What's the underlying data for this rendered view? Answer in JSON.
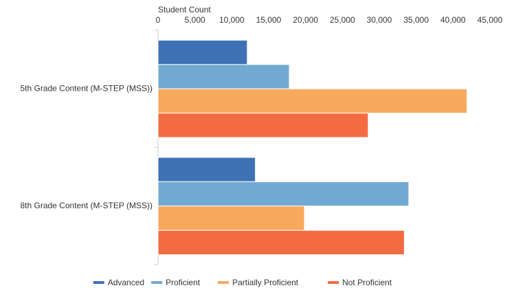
{
  "chart_data": {
    "type": "bar",
    "orientation": "horizontal",
    "x_axis_label": "Student Count",
    "categories": [
      "5th Grade Content (M-STEP (MSS))",
      "8th Grade Content (M-STEP (MSS))"
    ],
    "series": [
      {
        "name": "Advanced",
        "color": "#3f72b5",
        "values": [
          12100,
          13200
        ]
      },
      {
        "name": "Proficient",
        "color": "#72a9d0",
        "values": [
          17800,
          34000
        ]
      },
      {
        "name": "Partially Proficient",
        "color": "#f8a95e",
        "values": [
          41900,
          19850
        ]
      },
      {
        "name": "Not Proficient",
        "color": "#f26b41",
        "values": [
          28500,
          33400
        ]
      }
    ],
    "xlim": [
      0,
      45000
    ],
    "xticks": [
      0,
      {
        "value": 5000,
        "label": "5,000"
      },
      {
        "value": 10000,
        "label": "10,000"
      },
      {
        "value": 15000,
        "label": "15,000"
      },
      {
        "value": 20000,
        "label": "20,000"
      },
      {
        "value": 25000,
        "label": "25,000"
      },
      {
        "value": 30000,
        "label": "30,000"
      },
      {
        "value": 35000,
        "label": "35,000"
      },
      {
        "value": 40000,
        "label": "40,000"
      },
      {
        "value": 45000,
        "label": "45,000"
      }
    ],
    "legend": "bottom"
  }
}
